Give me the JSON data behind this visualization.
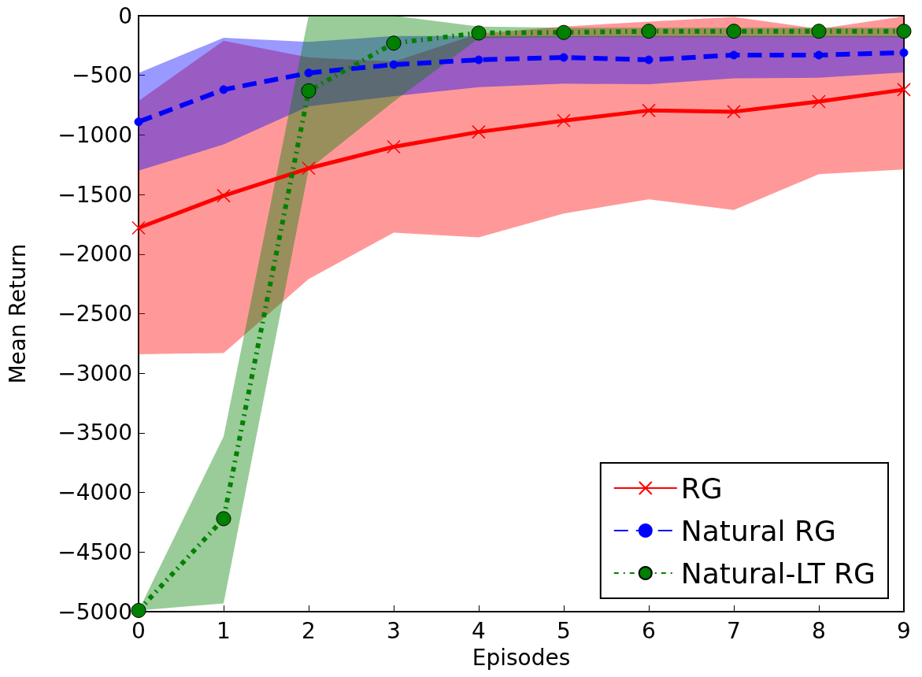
{
  "chart_data": {
    "type": "line",
    "xlabel": "Episodes",
    "ylabel": "Mean Return",
    "x": [
      0,
      1,
      2,
      3,
      4,
      5,
      6,
      7,
      8,
      9
    ],
    "xlim": [
      0,
      9
    ],
    "xticks": [
      0,
      1,
      2,
      3,
      4,
      5,
      6,
      7,
      8,
      9
    ],
    "ylim": [
      -5000,
      0
    ],
    "yticks": [
      -5000,
      -4500,
      -4000,
      -3500,
      -3000,
      -2500,
      -2000,
      -1500,
      -1000,
      -500,
      0
    ],
    "grid": false,
    "legend": "bottom right",
    "series": [
      {
        "name": "RG",
        "color": "#ff0000",
        "marker": "cross",
        "line_style": "solid",
        "values": [
          -1780,
          -1510,
          -1280,
          -1100,
          -975,
          -880,
          -795,
          -805,
          -720,
          -620
        ],
        "lower": [
          -2840,
          -2830,
          -2210,
          -1820,
          -1860,
          -1660,
          -1540,
          -1630,
          -1330,
          -1290
        ],
        "upper": [
          -715,
          -210,
          -350,
          -385,
          -150,
          -90,
          -50,
          -10,
          -110,
          -5
        ]
      },
      {
        "name": "Natural RG",
        "color": "#0000ff",
        "marker": "circle",
        "line_style": "dashed",
        "values": [
          -890,
          -620,
          -480,
          -410,
          -370,
          -350,
          -370,
          -330,
          -330,
          -310
        ],
        "lower": [
          -1300,
          -1080,
          -760,
          -675,
          -600,
          -570,
          -575,
          -525,
          -520,
          -475
        ],
        "upper": [
          -480,
          -185,
          -220,
          -170,
          -170,
          -170,
          -170,
          -170,
          -170,
          -170
        ]
      },
      {
        "name": "Natural-LT RG",
        "color": "#008000",
        "marker": "circle",
        "line_style": "dotted",
        "values": [
          -4990,
          -4220,
          -630,
          -230,
          -145,
          -140,
          -130,
          -130,
          -130,
          -130
        ],
        "lower": [
          -4990,
          -4930,
          -1290,
          -720,
          -190,
          -180,
          -180,
          -180,
          -180,
          -180
        ],
        "upper": [
          -4990,
          -3530,
          0,
          0,
          -90,
          -100,
          -100,
          -100,
          -100,
          -100
        ]
      }
    ]
  }
}
